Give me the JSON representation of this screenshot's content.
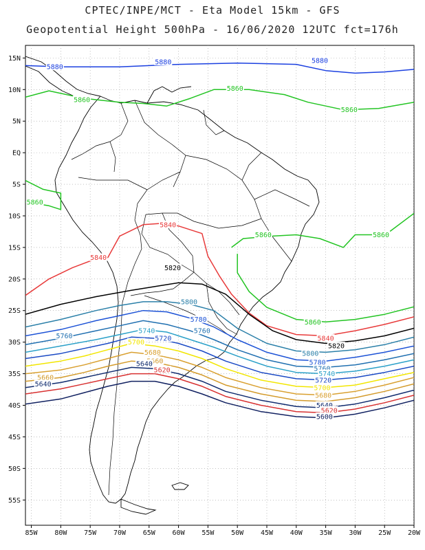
{
  "header": {
    "title_line1": "CPTEC/INPE/MCT -  Eta Model 15km - GFS",
    "title_line2": "Geopotential Height 500hPa - 16/06/2020 12UTC fct=176h"
  },
  "map": {
    "lon_range": [
      -86,
      -20
    ],
    "lat_range": [
      -59,
      17
    ],
    "lat_labels": [
      "15N",
      "10N",
      "5N",
      "EQ",
      "5S",
      "10S",
      "15S",
      "20S",
      "25S",
      "30S",
      "35S",
      "40S",
      "45S",
      "50S",
      "55S"
    ],
    "lon_labels": [
      "85W",
      "80W",
      "75W",
      "70W",
      "65W",
      "60W",
      "55W",
      "50W",
      "45W",
      "40W",
      "35W",
      "30W",
      "25W",
      "20W"
    ],
    "grid": "dotted",
    "colors": {
      "c5880": "#1a3fe0",
      "c5860": "#22c422",
      "c5840": "#e83a3a",
      "c5820": "#000000",
      "c5800": "#2a7fa8",
      "c5780": "#1c52d6",
      "c5760": "#1f6fb0",
      "c5740": "#2aa0c8",
      "c5720": "#1a49c4",
      "c5700": "#f2e600",
      "c5680": "#d9a030",
      "c5660": "#d39a2a",
      "c5640": "#0f2a6e",
      "c5620": "#d83030",
      "c5600": "#102060",
      "coast": "#000000"
    },
    "contour_labels": [
      "5880",
      "5860",
      "5840",
      "5820",
      "5800",
      "5780",
      "5760",
      "5740",
      "5720",
      "5700",
      "5680",
      "5660",
      "5640",
      "5620",
      "5600"
    ]
  }
}
